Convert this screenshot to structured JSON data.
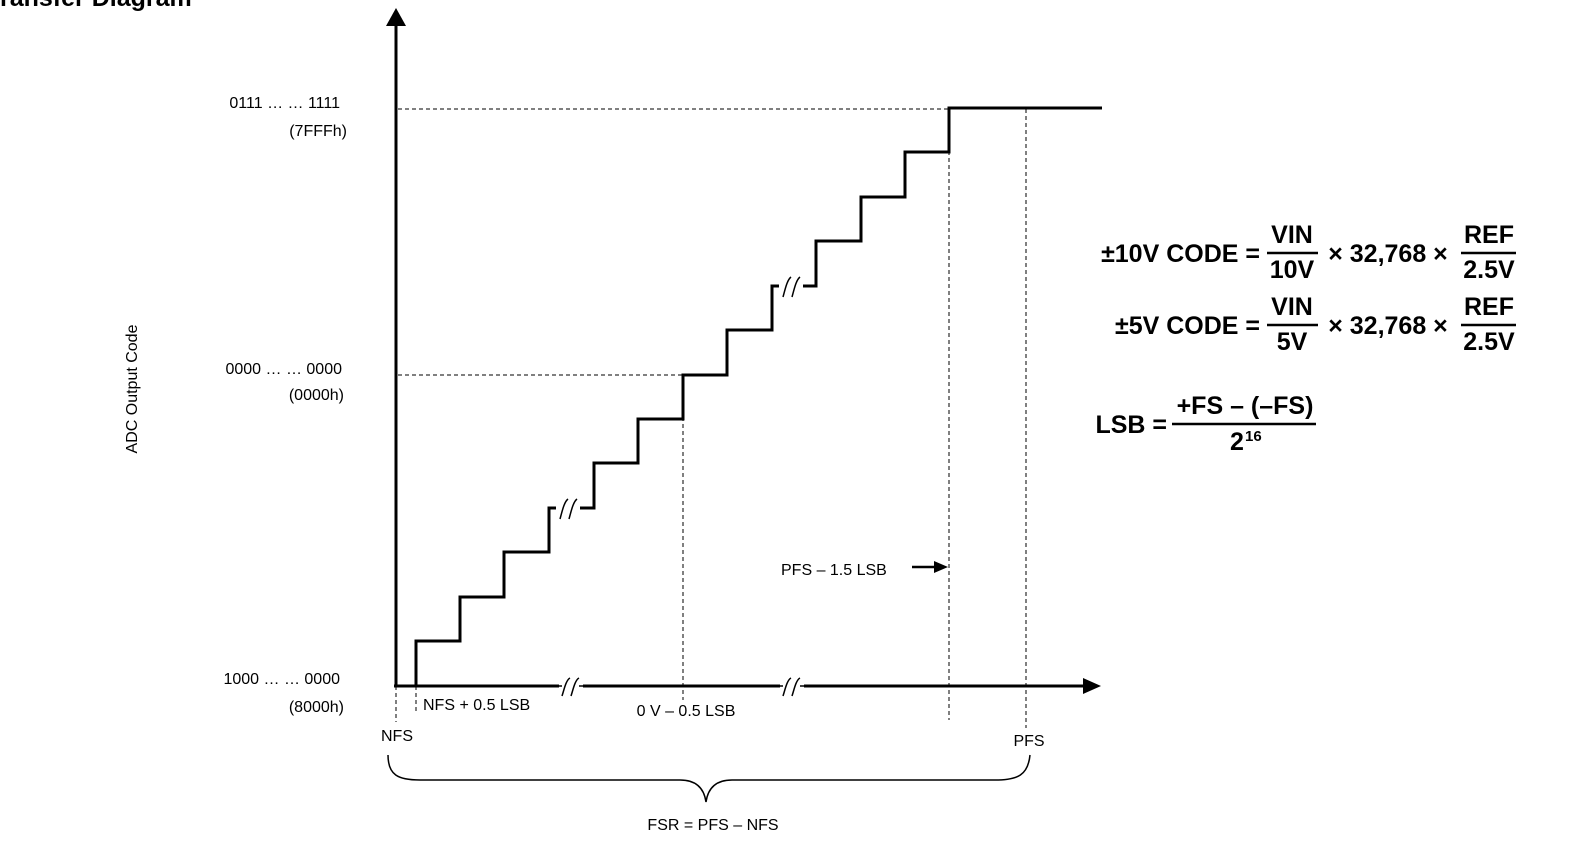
{
  "header": {
    "title_fragment": "ransfer Diagram"
  },
  "y_axis": {
    "label": "ADC Output Code",
    "ticks": [
      {
        "code": "0111 … … 1111",
        "hex": "(7FFFh)"
      },
      {
        "code": "0000 … … 0000",
        "hex": "(0000h)"
      },
      {
        "code": "1000 … … 0000",
        "hex": "(8000h)"
      }
    ]
  },
  "x_axis": {
    "nfs": "NFS",
    "nfs_half": "NFS + 0.5 LSB",
    "zero": "0 V – 0.5 LSB",
    "pfs": "PFS",
    "pfs_annotation": "PFS – 1.5 LSB",
    "fsr": "FSR = PFS – NFS"
  },
  "equations": {
    "eq10": {
      "lhs": "±10V CODE =",
      "num1": "VIN",
      "den1": "10V",
      "mid": "× 32,768 ×",
      "num2": "REF",
      "den2": "2.5V"
    },
    "eq5": {
      "lhs": "±5V CODE =",
      "num1": "VIN",
      "den1": "5V",
      "mid": "× 32,768 ×",
      "num2": "REF",
      "den2": "2.5V"
    },
    "lsb": {
      "lhs": "LSB =",
      "num": "+FS – (–FS)",
      "den_base": "2",
      "den_exp": "16"
    }
  }
}
